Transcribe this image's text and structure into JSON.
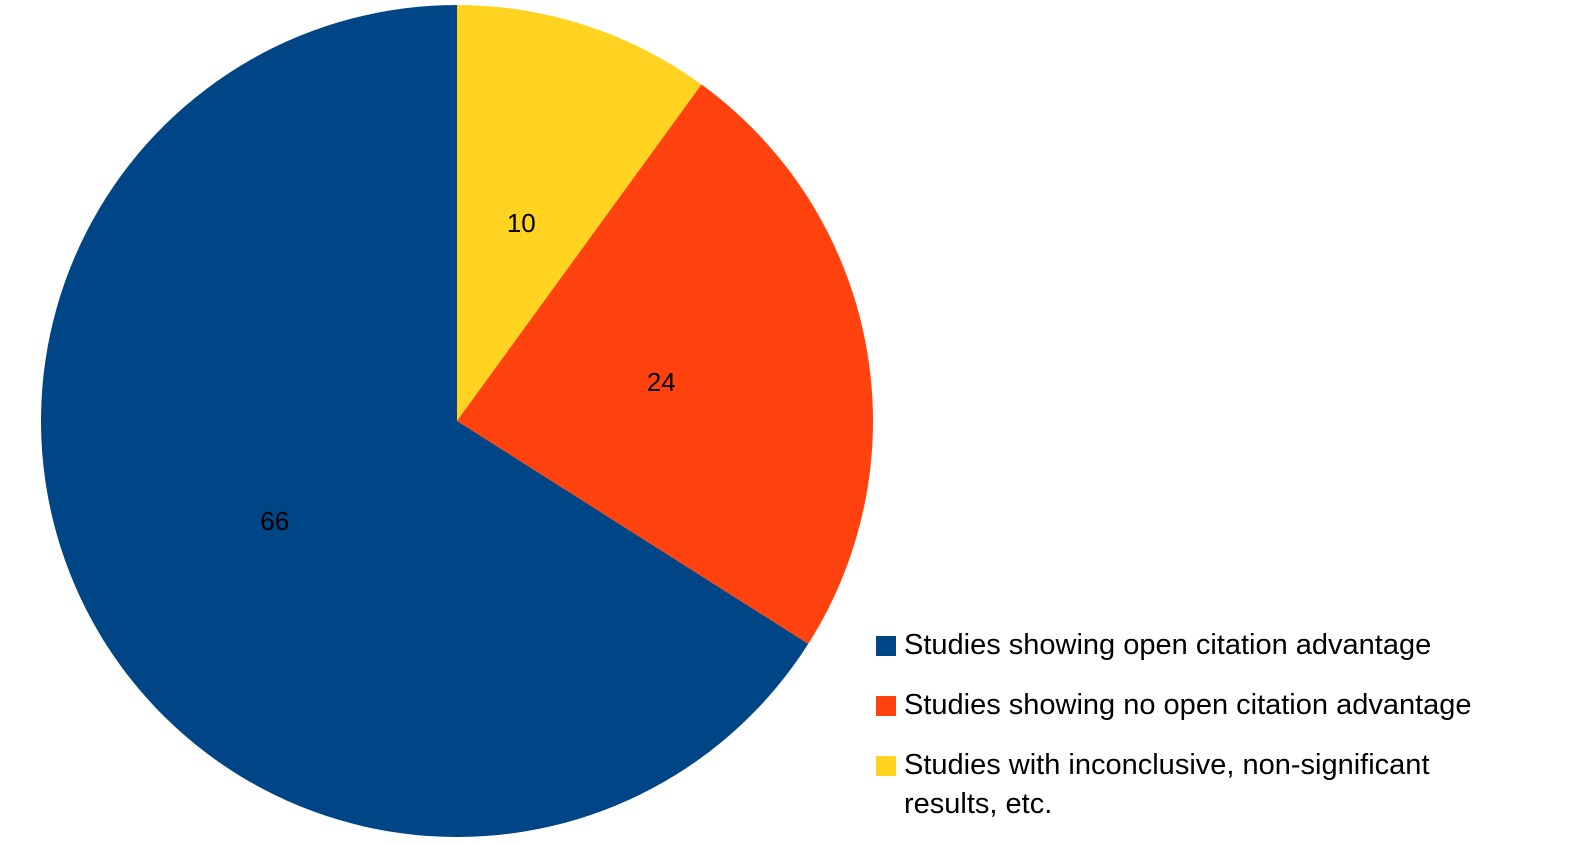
{
  "chart_data": {
    "type": "pie",
    "title": "",
    "start_angle": "12 o'clock, clockwise",
    "legend_position": "bottom-right",
    "slices": [
      {
        "name": "Studies with inconclusive, non-significant results, etc.",
        "value": 10,
        "label": "10",
        "color": "#FFD320"
      },
      {
        "name": "Studies showing no open citation advantage",
        "value": 24,
        "label": "24",
        "color": "#FF420E"
      },
      {
        "name": "Studies showing open citation advantage",
        "value": 66,
        "label": "66",
        "color": "#004586"
      }
    ]
  },
  "legend": {
    "items": [
      {
        "label": "Studies showing open citation advantage",
        "color": "#004586"
      },
      {
        "label": "Studies showing no open citation advantage",
        "color": "#FF420E"
      },
      {
        "label": "Studies with inconclusive, non-significant results, etc.",
        "color": "#FFD320"
      }
    ]
  }
}
